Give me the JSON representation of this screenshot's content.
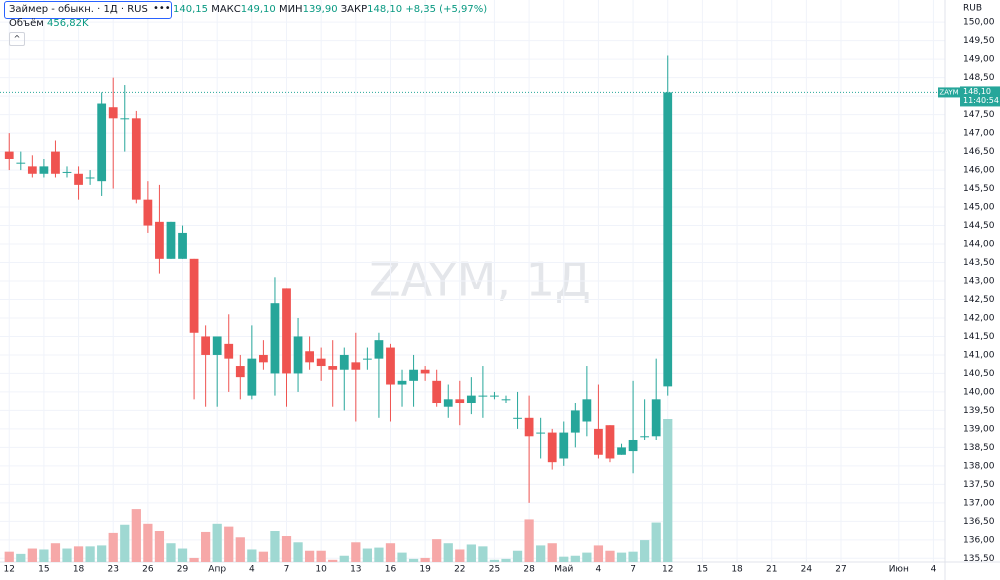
{
  "chart_data": {
    "type": "candlestick",
    "header": {
      "name": "Займер - обыкн. · 1Д · RUS",
      "more": "•••",
      "open_value": "140,15",
      "high_label": "МАКС",
      "high_value": "149,10",
      "low_label": "МИН",
      "low_value": "139,90",
      "close_label": "ЗАКР",
      "close_value": "148,10",
      "change": "+8,35 (+5,97%)",
      "volume_title": "Объём",
      "volume_value": "456,82K"
    },
    "watermark": "ZAYM, 1Д",
    "currency": "RUB",
    "ticker": "ZAYM",
    "last_price_label": "148,10",
    "last_time": "11:40:54",
    "up_color": "#26a69a",
    "down_color": "#ef5350",
    "volume_up_color": "#9fd8d2",
    "volume_down_color": "#f6a8a8",
    "grid": true,
    "xlim": [
      -0.8,
      81
    ],
    "xticks": [
      {
        "value": 0,
        "label": "12"
      },
      {
        "value": 3,
        "label": "15"
      },
      {
        "value": 6,
        "label": "18"
      },
      {
        "value": 9,
        "label": "23"
      },
      {
        "value": 12,
        "label": "26"
      },
      {
        "value": 15,
        "label": "29"
      },
      {
        "value": 18,
        "label": "Апр"
      },
      {
        "value": 21,
        "label": "4"
      },
      {
        "value": 24,
        "label": "7"
      },
      {
        "value": 27,
        "label": "10"
      },
      {
        "value": 30,
        "label": "13"
      },
      {
        "value": 33,
        "label": "16"
      },
      {
        "value": 36,
        "label": "19"
      },
      {
        "value": 39,
        "label": "22"
      },
      {
        "value": 42,
        "label": "25"
      },
      {
        "value": 45,
        "label": "28"
      },
      {
        "value": 48,
        "label": "Май"
      },
      {
        "value": 51,
        "label": "4"
      },
      {
        "value": 54,
        "label": "7"
      },
      {
        "value": 57,
        "label": "12"
      },
      {
        "value": 60,
        "label": "15"
      },
      {
        "value": 63,
        "label": "18"
      },
      {
        "value": 66,
        "label": "21"
      },
      {
        "value": 69,
        "label": "24"
      },
      {
        "value": 72,
        "label": "27"
      },
      {
        "value": 77,
        "label": "Июн"
      },
      {
        "value": 80,
        "label": "4"
      }
    ],
    "ylim": [
      135.4,
      150.6
    ],
    "yticks": [
      {
        "value": 135.5,
        "label": "135,50"
      },
      {
        "value": 136,
        "label": "136,00"
      },
      {
        "value": 136.5,
        "label": "136,50"
      },
      {
        "value": 137,
        "label": "137,00"
      },
      {
        "value": 137.5,
        "label": "137,50"
      },
      {
        "value": 138,
        "label": "138,00"
      },
      {
        "value": 138.5,
        "label": "138,50"
      },
      {
        "value": 139,
        "label": "139,00"
      },
      {
        "value": 139.5,
        "label": "139,50"
      },
      {
        "value": 140,
        "label": "140,00"
      },
      {
        "value": 140.5,
        "label": "140,50"
      },
      {
        "value": 141,
        "label": "141,00"
      },
      {
        "value": 141.5,
        "label": "141,50"
      },
      {
        "value": 142,
        "label": "142,00"
      },
      {
        "value": 142.5,
        "label": "142,50"
      },
      {
        "value": 143,
        "label": "143,00"
      },
      {
        "value": 143.5,
        "label": "143,50"
      },
      {
        "value": 144,
        "label": "144,00"
      },
      {
        "value": 144.5,
        "label": "144,50"
      },
      {
        "value": 145,
        "label": "145,00"
      },
      {
        "value": 145.5,
        "label": "145,50"
      },
      {
        "value": 146,
        "label": "146,00"
      },
      {
        "value": 146.5,
        "label": "146,50"
      },
      {
        "value": 147,
        "label": "147,00"
      },
      {
        "value": 147.5,
        "label": "147,50"
      },
      {
        "value": 148,
        "label": "148,00"
      },
      {
        "value": 148.5,
        "label": "148,50"
      },
      {
        "value": 149,
        "label": "149,00"
      },
      {
        "value": 149.5,
        "label": "149,50"
      },
      {
        "value": 150,
        "label": "150,00"
      }
    ],
    "open": [
      146.5,
      146.2,
      146.1,
      145.9,
      146.5,
      145.95,
      145.9,
      145.8,
      145.7,
      147.7,
      147.4,
      147.4,
      145.2,
      144.6,
      143.6,
      143.6,
      143.6,
      141.5,
      141.0,
      141.3,
      140.7,
      139.9,
      141.0,
      140.5,
      142.8,
      140.5,
      141.1,
      140.9,
      140.7,
      140.6,
      140.8,
      140.9,
      140.9,
      141.2,
      140.2,
      140.3,
      140.6,
      140.3,
      139.6,
      139.8,
      139.7,
      139.9,
      139.9,
      139.8,
      139.3,
      139.3,
      138.9,
      138.9,
      138.2,
      138.9,
      139.2,
      139.0,
      139.1,
      138.3,
      138.4,
      138.8,
      138.8,
      140.15
    ],
    "high": [
      147.0,
      146.5,
      146.4,
      146.3,
      146.8,
      146.1,
      146.1,
      146.0,
      148.1,
      148.5,
      148.3,
      147.6,
      145.7,
      145.6,
      144.6,
      144.5,
      143.6,
      141.8,
      141.5,
      142.1,
      141.0,
      141.8,
      141.4,
      143.1,
      142.8,
      142.0,
      141.5,
      141.2,
      141.4,
      141.2,
      141.6,
      141.2,
      141.6,
      141.3,
      140.6,
      141.0,
      140.7,
      140.6,
      140.2,
      140.3,
      140.4,
      140.7,
      140.0,
      139.9,
      140.0,
      139.9,
      139.3,
      139.0,
      139.2,
      139.7,
      140.7,
      140.2,
      139.1,
      138.6,
      140.3,
      139.8,
      140.9,
      149.1
    ],
    "low": [
      146.0,
      146.0,
      145.8,
      145.8,
      145.8,
      145.8,
      145.2,
      145.6,
      145.3,
      145.5,
      146.5,
      145.1,
      144.3,
      143.2,
      143.6,
      143.6,
      139.8,
      139.6,
      139.6,
      140.0,
      139.8,
      139.8,
      140.6,
      139.9,
      139.6,
      140.0,
      140.6,
      140.3,
      139.6,
      139.5,
      139.2,
      140.6,
      139.3,
      139.2,
      139.6,
      139.6,
      140.3,
      139.6,
      139.3,
      139.1,
      139.4,
      139.3,
      139.8,
      139.7,
      139.0,
      137.0,
      138.2,
      137.9,
      138.0,
      138.5,
      138.8,
      138.2,
      138.1,
      138.3,
      137.8,
      138.7,
      138.7,
      139.9
    ],
    "close": [
      146.3,
      146.2,
      145.9,
      146.1,
      145.9,
      145.95,
      145.6,
      145.8,
      147.8,
      147.4,
      147.4,
      145.2,
      144.5,
      143.6,
      144.6,
      144.3,
      141.6,
      141.0,
      141.5,
      140.9,
      140.4,
      140.9,
      140.8,
      142.4,
      140.5,
      141.5,
      140.8,
      140.7,
      140.6,
      141.0,
      140.6,
      140.9,
      141.4,
      140.2,
      140.3,
      140.6,
      140.5,
      139.7,
      139.8,
      139.7,
      139.9,
      139.9,
      139.9,
      139.8,
      139.3,
      138.8,
      138.9,
      138.1,
      138.9,
      139.5,
      139.8,
      138.3,
      138.2,
      138.5,
      138.7,
      138.8,
      139.8,
      148.1
    ],
    "volume": [
      33,
      26,
      43,
      40,
      60,
      43,
      50,
      50,
      53,
      93,
      119,
      169,
      122,
      99,
      60,
      43,
      13,
      96,
      122,
      113,
      79,
      40,
      33,
      99,
      83,
      63,
      36,
      36,
      7,
      20,
      63,
      43,
      46,
      60,
      30,
      10,
      13,
      73,
      60,
      40,
      56,
      50,
      7,
      10,
      36,
      136,
      53,
      60,
      17,
      20,
      30,
      53,
      36,
      30,
      33,
      70,
      126,
      456.82
    ]
  }
}
